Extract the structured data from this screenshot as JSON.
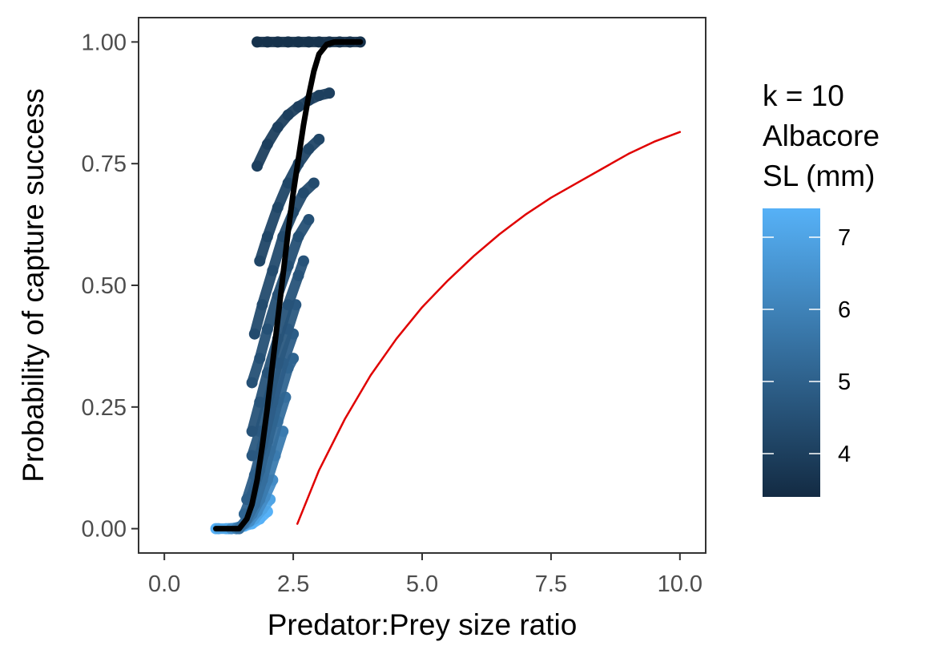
{
  "chart_data": {
    "type": "scatter",
    "title": "",
    "xlabel": "Predator:Prey size ratio",
    "ylabel": "Probability of capture success",
    "xlim": [
      -0.5,
      10.5
    ],
    "ylim": [
      -0.05,
      1.05
    ],
    "x_ticks": [
      0.0,
      2.5,
      5.0,
      7.5,
      10.0
    ],
    "x_tick_labels": [
      "0.0",
      "2.5",
      "5.0",
      "7.5",
      "10.0"
    ],
    "y_ticks": [
      0.0,
      0.25,
      0.5,
      0.75,
      1.0
    ],
    "y_tick_labels": [
      "0.00",
      "0.25",
      "0.50",
      "0.75",
      "1.00"
    ],
    "grid": false,
    "legend": {
      "title_lines": [
        "k = 10",
        "Albacore",
        "SL (mm)"
      ],
      "placement": "right",
      "type": "colorbar",
      "range": [
        3.4,
        7.4
      ],
      "ticks": [
        4,
        5,
        6,
        7
      ],
      "tick_labels": [
        "4",
        "5",
        "6",
        "7"
      ],
      "color_low": "#132B43",
      "color_high": "#56B1F7"
    },
    "series": [
      {
        "kind": "points",
        "sl": 3.6,
        "color_value": 3.6,
        "x": [
          1.8,
          2.0,
          2.2,
          2.4,
          2.6,
          2.8,
          3.0,
          3.2,
          3.4,
          3.6,
          3.8
        ],
        "y": [
          1.0,
          1.0,
          1.0,
          1.0,
          1.0,
          1.0,
          1.0,
          1.0,
          1.0,
          1.0,
          1.0
        ]
      },
      {
        "kind": "points",
        "sl": 4.0,
        "color_value": 4.0,
        "x": [
          1.8,
          2.0,
          2.2,
          2.4,
          2.6,
          2.8,
          3.0,
          3.2
        ],
        "y": [
          0.745,
          0.79,
          0.825,
          0.85,
          0.867,
          0.88,
          0.89,
          0.895
        ]
      },
      {
        "kind": "points",
        "sl": 4.2,
        "color_value": 4.2,
        "x": [
          1.85,
          2.0,
          2.2,
          2.4,
          2.6,
          2.8,
          3.0
        ],
        "y": [
          0.55,
          0.6,
          0.66,
          0.71,
          0.75,
          0.78,
          0.8
        ]
      },
      {
        "kind": "points",
        "sl": 4.35,
        "color_value": 4.35,
        "x": [
          1.75,
          1.9,
          2.1,
          2.3,
          2.5,
          2.7,
          2.9
        ],
        "y": [
          0.4,
          0.46,
          0.53,
          0.6,
          0.65,
          0.69,
          0.71
        ]
      },
      {
        "kind": "points",
        "sl": 4.5,
        "color_value": 4.5,
        "x": [
          1.7,
          1.85,
          2.0,
          2.2,
          2.4,
          2.6,
          2.8
        ],
        "y": [
          0.3,
          0.35,
          0.41,
          0.48,
          0.54,
          0.6,
          0.635
        ]
      },
      {
        "kind": "points",
        "sl": 4.6,
        "color_value": 4.6,
        "x": [
          1.7,
          1.85,
          2.0,
          2.2,
          2.4,
          2.6,
          2.7
        ],
        "y": [
          0.2,
          0.26,
          0.32,
          0.39,
          0.46,
          0.52,
          0.55
        ]
      },
      {
        "kind": "points",
        "sl": 4.75,
        "color_value": 4.75,
        "x": [
          1.7,
          1.85,
          2.0,
          2.2,
          2.4,
          2.55
        ],
        "y": [
          0.15,
          0.2,
          0.26,
          0.34,
          0.41,
          0.46
        ]
      },
      {
        "kind": "points",
        "sl": 4.9,
        "color_value": 4.9,
        "x": [
          1.6,
          1.75,
          1.9,
          2.1,
          2.3,
          2.5
        ],
        "y": [
          0.06,
          0.11,
          0.17,
          0.26,
          0.34,
          0.4
        ]
      },
      {
        "kind": "points",
        "sl": 5.1,
        "color_value": 5.1,
        "x": [
          1.55,
          1.7,
          1.85,
          2.0,
          2.2,
          2.4,
          2.5
        ],
        "y": [
          0.03,
          0.07,
          0.12,
          0.18,
          0.26,
          0.33,
          0.35
        ]
      },
      {
        "kind": "points",
        "sl": 5.4,
        "color_value": 5.4,
        "x": [
          1.45,
          1.6,
          1.75,
          1.9,
          2.05,
          2.2,
          2.35
        ],
        "y": [
          0.0,
          0.02,
          0.05,
          0.1,
          0.16,
          0.22,
          0.27
        ]
      },
      {
        "kind": "points",
        "sl": 5.8,
        "color_value": 5.8,
        "x": [
          1.4,
          1.55,
          1.7,
          1.85,
          2.0,
          2.15,
          2.3
        ],
        "y": [
          0.0,
          0.01,
          0.03,
          0.06,
          0.1,
          0.15,
          0.2
        ]
      },
      {
        "kind": "points",
        "sl": 6.3,
        "color_value": 6.3,
        "x": [
          1.3,
          1.5,
          1.65,
          1.8,
          1.95,
          2.1
        ],
        "y": [
          0.0,
          0.005,
          0.015,
          0.035,
          0.065,
          0.1
        ]
      },
      {
        "kind": "points",
        "sl": 7.0,
        "color_value": 7.0,
        "x": [
          1.05,
          1.25,
          1.45,
          1.6,
          1.75,
          1.9,
          2.05
        ],
        "y": [
          0.0,
          0.0,
          0.003,
          0.01,
          0.02,
          0.04,
          0.06
        ]
      },
      {
        "kind": "points",
        "sl": 7.4,
        "color_value": 7.4,
        "x": [
          1.0,
          1.2,
          1.4,
          1.55,
          1.7,
          1.85,
          2.0
        ],
        "y": [
          0.0,
          0.0,
          0.0,
          0.005,
          0.01,
          0.02,
          0.035
        ]
      },
      {
        "kind": "line",
        "color": "#000000",
        "x": [
          1.0,
          1.45,
          1.6,
          1.7,
          1.8,
          1.9,
          2.0,
          2.1,
          2.2,
          2.3,
          2.4,
          2.5,
          2.6,
          2.7,
          2.8,
          2.9,
          3.0,
          3.15,
          3.3,
          3.5,
          3.8
        ],
        "y": [
          0.0,
          0.0,
          0.02,
          0.05,
          0.1,
          0.17,
          0.25,
          0.34,
          0.43,
          0.52,
          0.61,
          0.69,
          0.76,
          0.83,
          0.89,
          0.94,
          0.975,
          0.995,
          1.0,
          1.0,
          1.0
        ]
      },
      {
        "kind": "line",
        "color": "#E00000",
        "x": [
          2.58,
          3.0,
          3.5,
          4.0,
          4.5,
          5.0,
          5.5,
          6.0,
          6.5,
          7.0,
          7.5,
          8.0,
          8.5,
          9.0,
          9.5,
          10.0
        ],
        "y": [
          0.01,
          0.12,
          0.225,
          0.315,
          0.39,
          0.455,
          0.51,
          0.56,
          0.605,
          0.645,
          0.68,
          0.71,
          0.74,
          0.77,
          0.795,
          0.815
        ]
      }
    ]
  }
}
